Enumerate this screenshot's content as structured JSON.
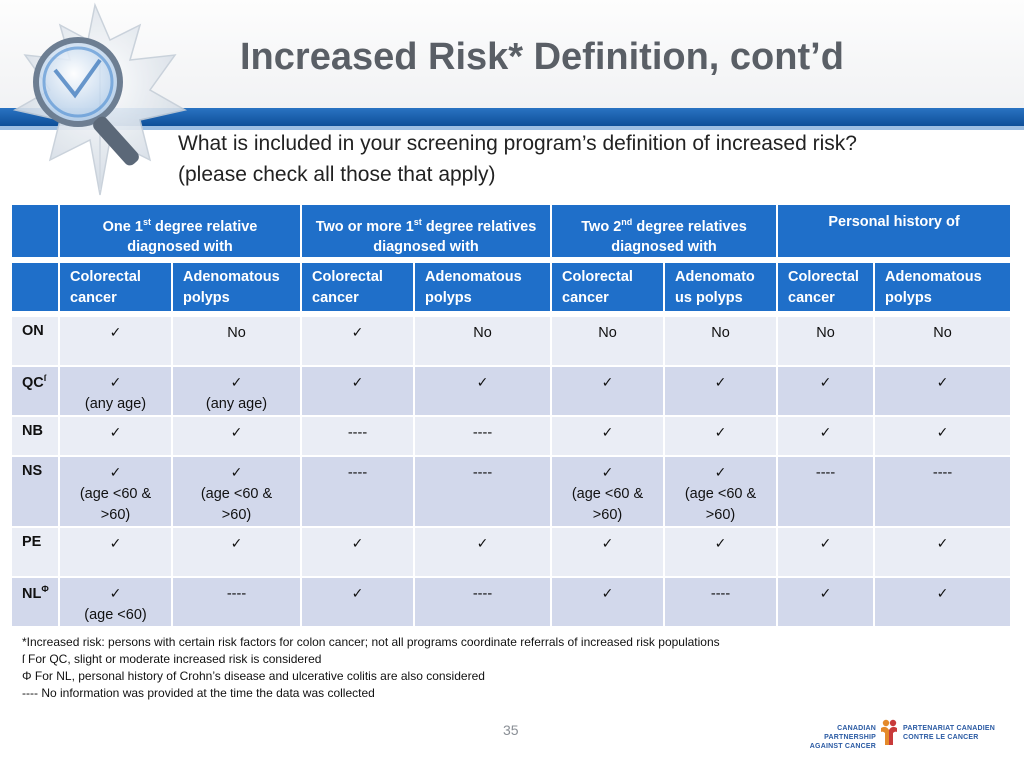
{
  "slide": {
    "title": "Increased Risk* Definition, cont’d",
    "question_line1": "What is included in your screening program’s definition of increased risk?",
    "question_line2": "(please check all those that apply)",
    "page_number": "35"
  },
  "table": {
    "groups": [
      {
        "pre": "One 1",
        "sup": "st",
        "post": " degree relative",
        "line2": "diagnosed  with"
      },
      {
        "pre": "Two or more 1",
        "sup": "st",
        "post": " degree relatives",
        "line2": "diagnosed with"
      },
      {
        "pre": "Two 2",
        "sup": "nd",
        "post": " degree relatives",
        "line2": "diagnosed with"
      },
      {
        "pre": "Personal history of",
        "sup": "",
        "post": "",
        "line2": ""
      }
    ],
    "subheaders": [
      [
        "Colorectal",
        "cancer"
      ],
      [
        "Adenomatous",
        "polyps"
      ],
      [
        "Colorectal",
        "cancer"
      ],
      [
        "Adenomatous",
        "polyps"
      ],
      [
        "Colorectal",
        "cancer"
      ],
      [
        "Adenomato",
        "us polyps"
      ],
      [
        "Colorectal",
        "cancer"
      ],
      [
        "Adenomatous",
        "polyps"
      ]
    ],
    "rows": [
      {
        "label": "ON",
        "sup": "",
        "cells": [
          {
            "v": "✓",
            "n": []
          },
          {
            "v": "No",
            "n": []
          },
          {
            "v": "✓",
            "n": []
          },
          {
            "v": "No",
            "n": []
          },
          {
            "v": "No",
            "n": []
          },
          {
            "v": "No",
            "n": []
          },
          {
            "v": "No",
            "n": []
          },
          {
            "v": "No",
            "n": []
          }
        ]
      },
      {
        "label": "QC",
        "sup": "ſ",
        "cells": [
          {
            "v": "✓",
            "n": [
              "(any age)"
            ]
          },
          {
            "v": "✓",
            "n": [
              "(any age)"
            ]
          },
          {
            "v": "✓",
            "n": []
          },
          {
            "v": "✓",
            "n": []
          },
          {
            "v": "✓",
            "n": []
          },
          {
            "v": "✓",
            "n": []
          },
          {
            "v": "✓",
            "n": []
          },
          {
            "v": "✓",
            "n": []
          }
        ]
      },
      {
        "label": "NB",
        "sup": "",
        "cells": [
          {
            "v": "✓",
            "n": []
          },
          {
            "v": "✓",
            "n": []
          },
          {
            "v": "----",
            "n": []
          },
          {
            "v": "----",
            "n": []
          },
          {
            "v": "✓",
            "n": []
          },
          {
            "v": "✓",
            "n": []
          },
          {
            "v": "✓",
            "n": []
          },
          {
            "v": "✓",
            "n": []
          }
        ]
      },
      {
        "label": "NS",
        "sup": "",
        "cells": [
          {
            "v": "✓",
            "n": [
              "(age <60 &",
              ">60)"
            ]
          },
          {
            "v": "✓",
            "n": [
              "(age <60 &",
              ">60)"
            ]
          },
          {
            "v": "----",
            "n": []
          },
          {
            "v": "----",
            "n": []
          },
          {
            "v": "✓",
            "n": [
              "(age <60 &",
              ">60)"
            ]
          },
          {
            "v": "✓",
            "n": [
              "(age <60 &",
              ">60)"
            ]
          },
          {
            "v": "----",
            "n": []
          },
          {
            "v": "----",
            "n": []
          }
        ]
      },
      {
        "label": "PE",
        "sup": "",
        "cells": [
          {
            "v": "✓",
            "n": []
          },
          {
            "v": "✓",
            "n": []
          },
          {
            "v": "✓",
            "n": []
          },
          {
            "v": "✓",
            "n": []
          },
          {
            "v": "✓",
            "n": []
          },
          {
            "v": "✓",
            "n": []
          },
          {
            "v": "✓",
            "n": []
          },
          {
            "v": "✓",
            "n": []
          }
        ]
      },
      {
        "label": "NL",
        "sup": "Φ",
        "cells": [
          {
            "v": "✓",
            "n": [
              "(age <60)"
            ]
          },
          {
            "v": "----",
            "n": []
          },
          {
            "v": "✓",
            "n": []
          },
          {
            "v": "----",
            "n": []
          },
          {
            "v": "✓",
            "n": []
          },
          {
            "v": "----",
            "n": []
          },
          {
            "v": "✓",
            "n": []
          },
          {
            "v": "✓",
            "n": []
          }
        ]
      }
    ]
  },
  "footnotes": [
    "*Increased risk: persons with certain risk factors for colon cancer; not all programs coordinate referrals of increased risk populations",
    "ſ For QC, slight or moderate increased risk is considered",
    "Φ For NL, personal history of Crohn’s disease and ulcerative colitis are also considered",
    "---- No information was provided at the time the data was collected"
  ],
  "logo": {
    "en_line1": "CANADIAN PARTNERSHIP",
    "en_line2": "AGAINST CANCER",
    "fr_line1": "PARTENARIAT CANADIEN",
    "fr_line2": "CONTRE LE CANCER"
  },
  "colors": {
    "header_blue": "#1f6fc9",
    "row_light": "#eaedf5",
    "row_dark": "#d2d8eb",
    "title_gray": "#5a5f66"
  }
}
